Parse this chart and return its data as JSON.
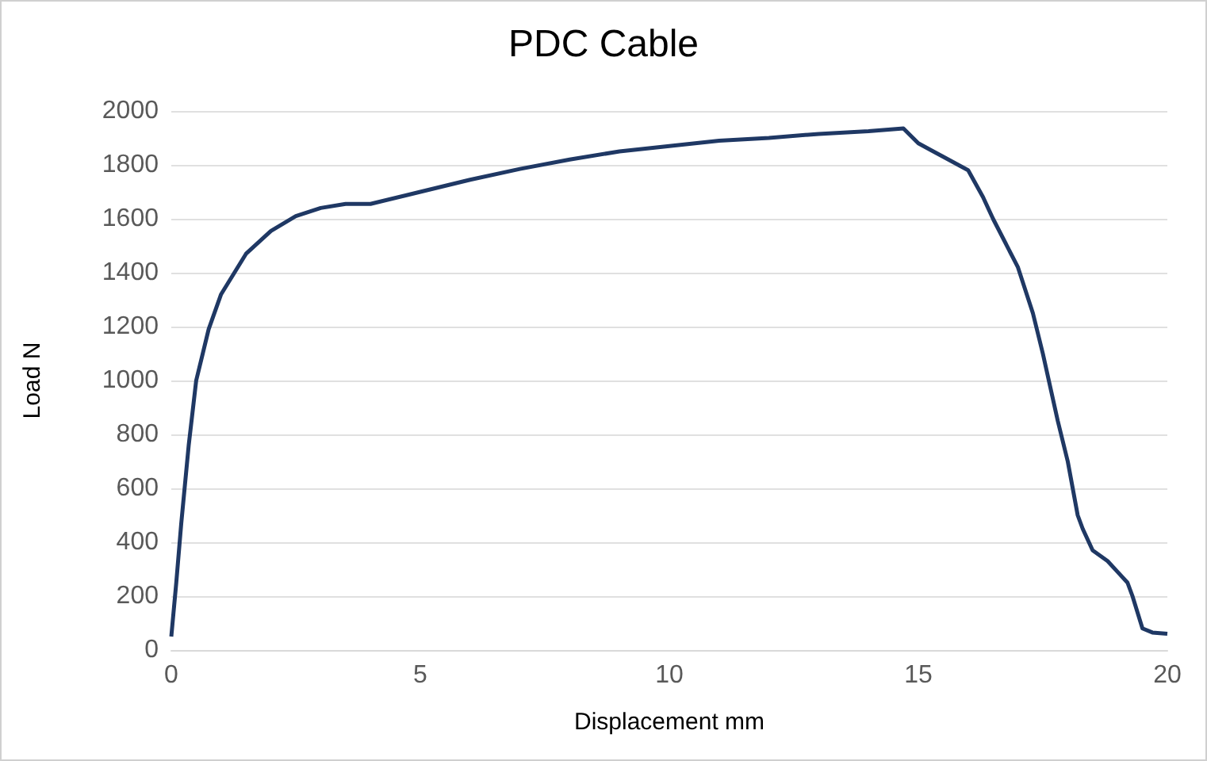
{
  "chart_data": {
    "type": "line",
    "title": "PDC Cable",
    "xlabel": "Displacement mm",
    "ylabel": "Load N",
    "xlim": [
      0,
      20
    ],
    "xticks": [
      0,
      5,
      10,
      15,
      20
    ],
    "ylim": [
      0,
      2000
    ],
    "yticks": [
      0,
      200,
      400,
      600,
      800,
      1000,
      1200,
      1400,
      1600,
      1800,
      2000
    ],
    "grid": "y",
    "marker": "none",
    "line_style": "solid",
    "series": [
      {
        "color": "#1f3864",
        "x": [
          0,
          0.1,
          0.2,
          0.35,
          0.5,
          0.75,
          1,
          1.5,
          2,
          2.5,
          3,
          3.5,
          4,
          5,
          6,
          7,
          8,
          9,
          10,
          11,
          12,
          13,
          14,
          14.7,
          15,
          15.3,
          15.5,
          16,
          16.3,
          16.5,
          17,
          17.3,
          17.5,
          17.8,
          18,
          18.2,
          18.3,
          18.5,
          18.8,
          19,
          19.2,
          19.3,
          19.5,
          19.7,
          20
        ],
        "values": [
          50,
          250,
          470,
          760,
          1000,
          1190,
          1320,
          1470,
          1555,
          1610,
          1640,
          1655,
          1655,
          1700,
          1745,
          1785,
          1820,
          1850,
          1870,
          1890,
          1900,
          1915,
          1925,
          1935,
          1880,
          1850,
          1830,
          1780,
          1680,
          1600,
          1420,
          1250,
          1100,
          850,
          700,
          500,
          450,
          370,
          330,
          290,
          250,
          200,
          80,
          65,
          60
        ]
      }
    ]
  }
}
